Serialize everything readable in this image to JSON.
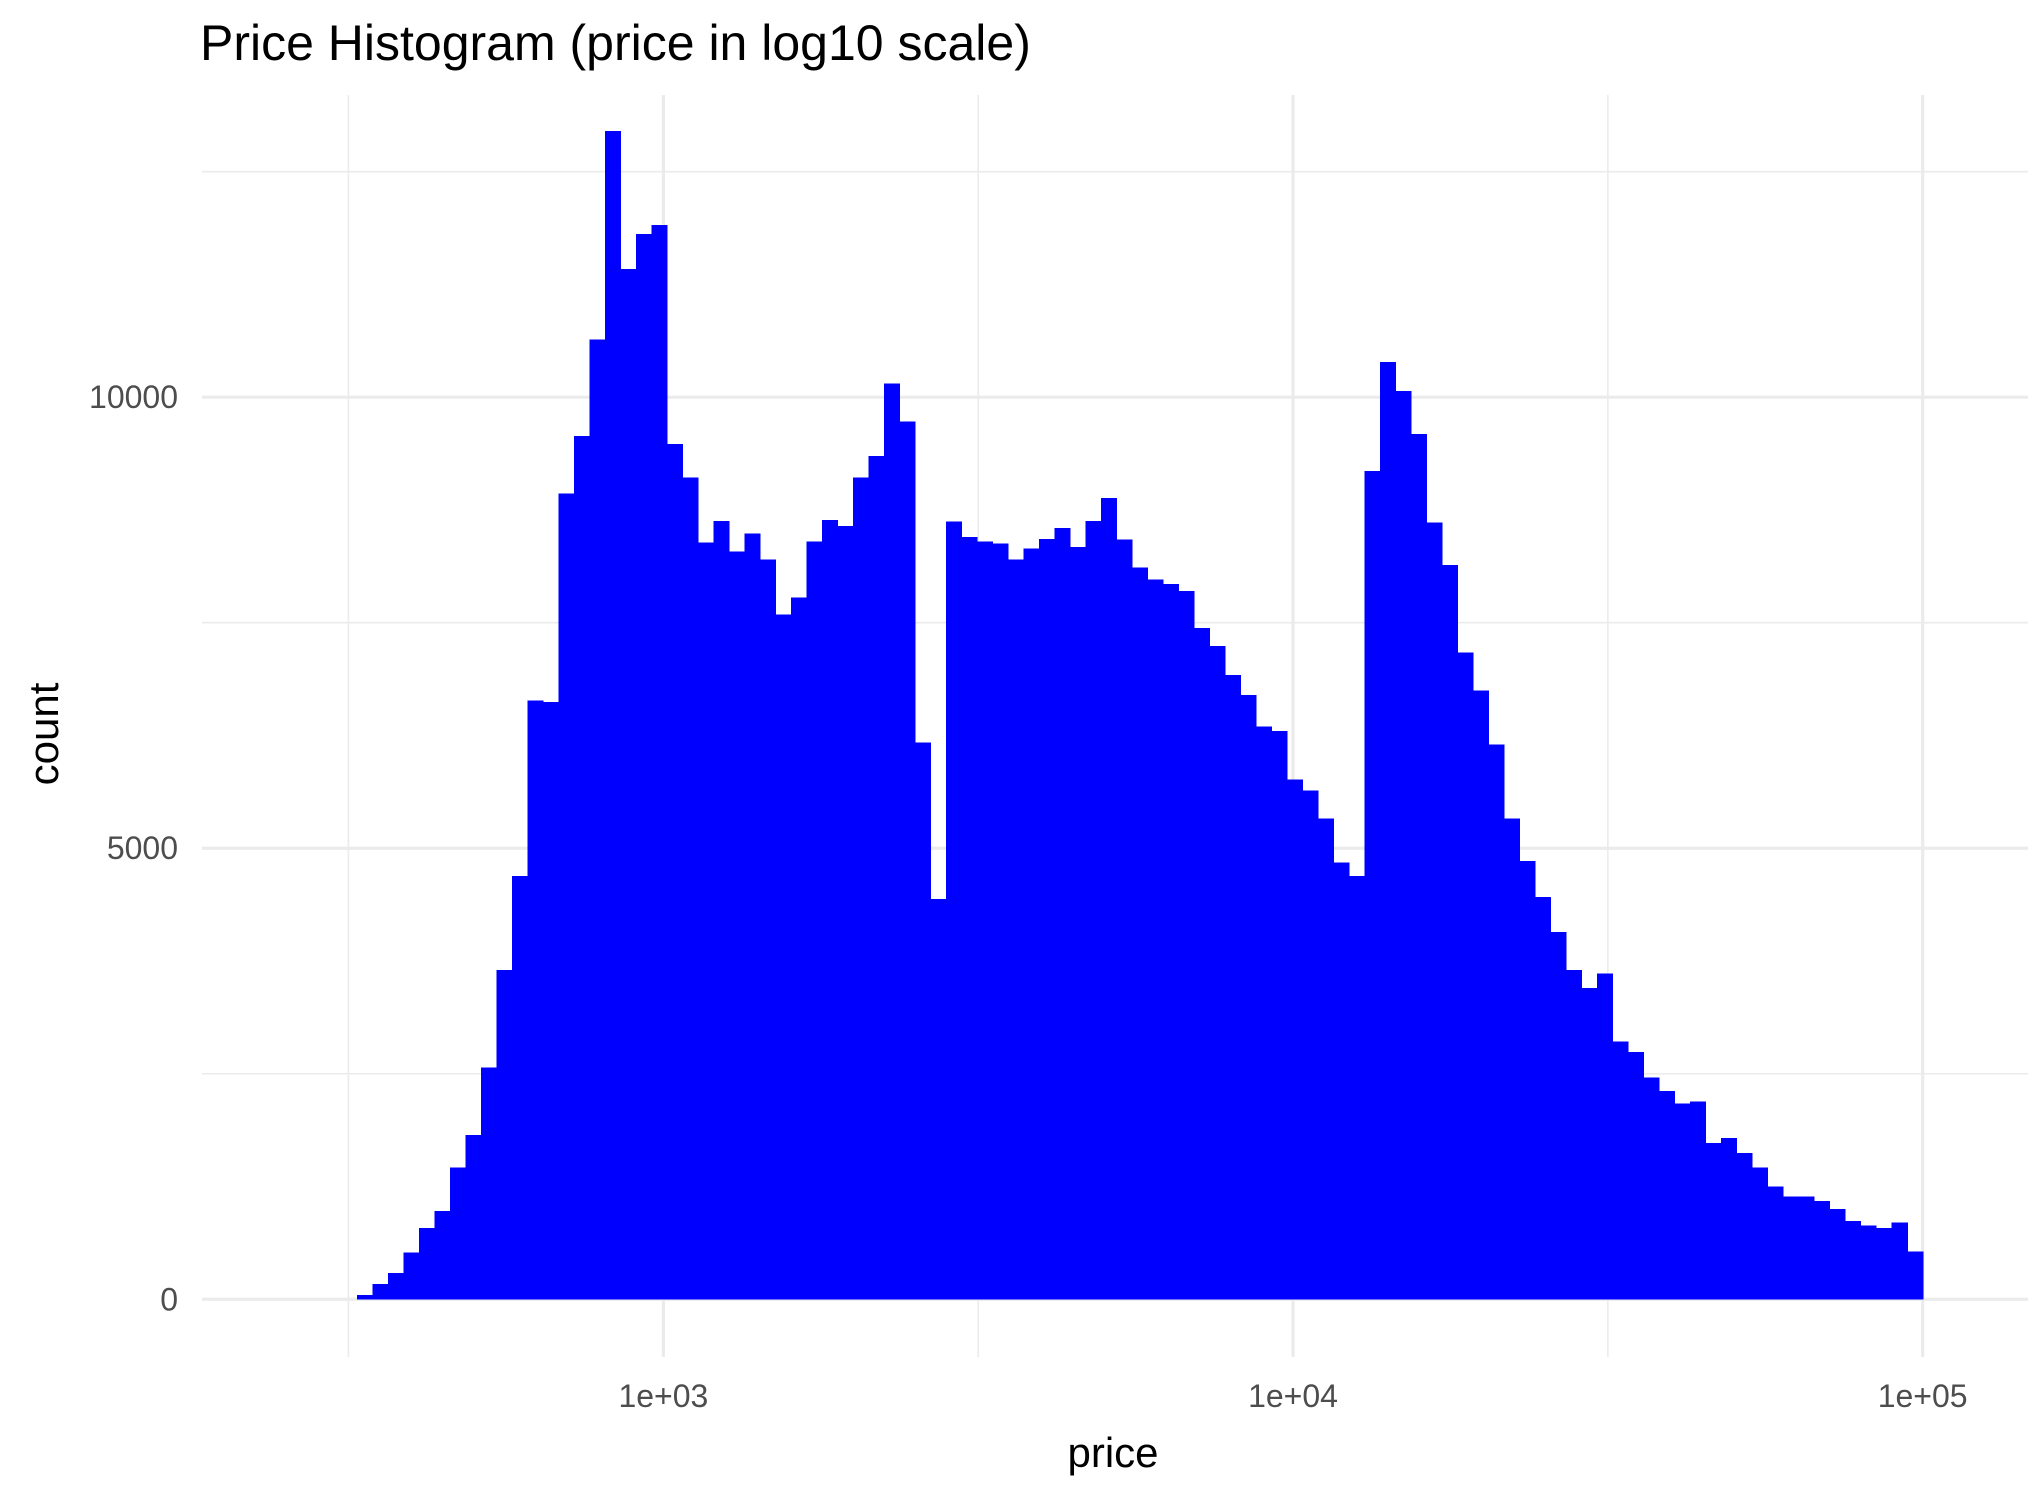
{
  "chart_data": {
    "type": "bar",
    "title": "Price Histogram (price in log10 scale)",
    "xlabel": "price",
    "ylabel": "count",
    "x_scale": "log10",
    "xlim": [
      185,
      147000
    ],
    "ylim": [
      -640,
      13350
    ],
    "x_ticks": [
      {
        "value": 1000,
        "label": "1e+03"
      },
      {
        "value": 10000,
        "label": "1e+04"
      },
      {
        "value": 100000,
        "label": "1e+05"
      }
    ],
    "x_minor_ticks": [
      316,
      3162,
      31623
    ],
    "y_ticks": [
      {
        "value": 0,
        "label": "0"
      },
      {
        "value": 5000,
        "label": "5000"
      },
      {
        "value": 10000,
        "label": "10000"
      }
    ],
    "y_minor_ticks": [
      2500,
      7500,
      12500
    ],
    "grid": true,
    "bar_color": "#0000ff",
    "bins": {
      "start_price": 326,
      "end_price": 100000,
      "note_count_values": "counts per equal-width bin in log10(price)",
      "counts": [
        50,
        170,
        290,
        520,
        790,
        980,
        1460,
        1820,
        2570,
        3650,
        4690,
        6640,
        6620,
        8930,
        9570,
        10640,
        12950,
        11420,
        11810,
        11910,
        9480,
        9110,
        8390,
        8630,
        8290,
        8490,
        8200,
        7590,
        7780,
        8400,
        8640,
        8570,
        9110,
        9350,
        10150,
        9730,
        6170,
        4440,
        8620,
        8450,
        8400,
        8380,
        8200,
        8320,
        8430,
        8550,
        8340,
        8630,
        8880,
        8420,
        8110,
        7980,
        7930,
        7850,
        7440,
        7240,
        6920,
        6700,
        6350,
        6300,
        5760,
        5640,
        5330,
        4840,
        4690,
        9180,
        10390,
        10070,
        9590,
        8610,
        8140,
        7170,
        6750,
        6150,
        5330,
        4860,
        4460,
        4070,
        3650,
        3450,
        3610,
        2860,
        2740,
        2460,
        2310,
        2170,
        2190,
        1730,
        1790,
        1620,
        1460,
        1250,
        1140,
        1140,
        1090,
        1000,
        870,
        820,
        790,
        850,
        530
      ]
    }
  }
}
